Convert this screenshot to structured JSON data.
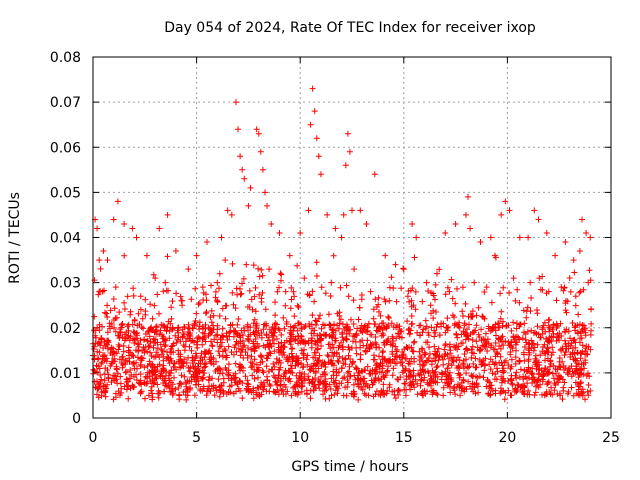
{
  "chart_data": {
    "type": "scatter",
    "title": "Day 054 of 2024, Rate Of TEC Index for receiver ixop",
    "xlabel": "GPS time / hours",
    "ylabel": "ROTI / TECUs",
    "xlim": [
      0,
      25
    ],
    "ylim": [
      0,
      0.08
    ],
    "x_ticks": [
      0,
      5,
      10,
      15,
      20,
      25
    ],
    "y_ticks": [
      0,
      0.01,
      0.02,
      0.03,
      0.04,
      0.05,
      0.06,
      0.07,
      0.08
    ],
    "x_tick_labels": [
      "0",
      "5",
      "10",
      "15",
      "20",
      "25"
    ],
    "y_tick_labels": [
      "0",
      "0.01",
      "0.02",
      "0.03",
      "0.04",
      "0.05",
      "0.06",
      "0.07",
      "0.08"
    ],
    "grid": true,
    "marker": "+",
    "color": "#ff0000",
    "series": [
      {
        "name": "ROTI",
        "points": [
          [
            0.1,
            0.044
          ],
          [
            0.2,
            0.042
          ],
          [
            0.3,
            0.035
          ],
          [
            0.5,
            0.037
          ],
          [
            0.7,
            0.035
          ],
          [
            1.0,
            0.044
          ],
          [
            1.2,
            0.048
          ],
          [
            1.5,
            0.043
          ],
          [
            1.9,
            0.042
          ],
          [
            2.1,
            0.04
          ],
          [
            2.6,
            0.036
          ],
          [
            3.2,
            0.042
          ],
          [
            3.6,
            0.045
          ],
          [
            4.0,
            0.037
          ],
          [
            4.6,
            0.033
          ],
          [
            5.0,
            0.036
          ],
          [
            5.5,
            0.039
          ],
          [
            6.2,
            0.04
          ],
          [
            6.5,
            0.046
          ],
          [
            6.7,
            0.045
          ],
          [
            6.9,
            0.07
          ],
          [
            7.0,
            0.064
          ],
          [
            7.1,
            0.058
          ],
          [
            7.2,
            0.055
          ],
          [
            7.3,
            0.053
          ],
          [
            7.5,
            0.047
          ],
          [
            7.6,
            0.051
          ],
          [
            7.9,
            0.064
          ],
          [
            8.0,
            0.063
          ],
          [
            8.1,
            0.059
          ],
          [
            8.2,
            0.055
          ],
          [
            8.3,
            0.05
          ],
          [
            8.4,
            0.047
          ],
          [
            8.6,
            0.043
          ],
          [
            9.0,
            0.041
          ],
          [
            9.5,
            0.036
          ],
          [
            10.0,
            0.041
          ],
          [
            10.4,
            0.046
          ],
          [
            10.5,
            0.065
          ],
          [
            10.6,
            0.073
          ],
          [
            10.7,
            0.068
          ],
          [
            10.8,
            0.062
          ],
          [
            10.9,
            0.058
          ],
          [
            11.0,
            0.054
          ],
          [
            11.3,
            0.045
          ],
          [
            11.7,
            0.042
          ],
          [
            12.0,
            0.04
          ],
          [
            12.1,
            0.045
          ],
          [
            12.2,
            0.056
          ],
          [
            12.3,
            0.063
          ],
          [
            12.4,
            0.059
          ],
          [
            12.5,
            0.046
          ],
          [
            12.9,
            0.046
          ],
          [
            13.2,
            0.043
          ],
          [
            13.6,
            0.054
          ],
          [
            14.1,
            0.036
          ],
          [
            14.6,
            0.034
          ],
          [
            15.0,
            0.033
          ],
          [
            15.4,
            0.043
          ],
          [
            15.6,
            0.04
          ],
          [
            16.1,
            0.03
          ],
          [
            16.6,
            0.032
          ],
          [
            17.0,
            0.041
          ],
          [
            17.5,
            0.043
          ],
          [
            18.0,
            0.045
          ],
          [
            18.1,
            0.049
          ],
          [
            18.2,
            0.042
          ],
          [
            18.7,
            0.039
          ],
          [
            19.2,
            0.04
          ],
          [
            19.4,
            0.036
          ],
          [
            19.7,
            0.045
          ],
          [
            19.9,
            0.048
          ],
          [
            20.1,
            0.046
          ],
          [
            20.6,
            0.04
          ],
          [
            21.0,
            0.04
          ],
          [
            21.3,
            0.046
          ],
          [
            21.5,
            0.044
          ],
          [
            21.9,
            0.041
          ],
          [
            22.3,
            0.036
          ],
          [
            22.8,
            0.039
          ],
          [
            23.2,
            0.035
          ],
          [
            23.5,
            0.037
          ],
          [
            23.6,
            0.044
          ],
          [
            23.8,
            0.041
          ],
          [
            24.0,
            0.04
          ],
          [
            0.3,
            0.028
          ],
          [
            1.1,
            0.029
          ],
          [
            2.3,
            0.027
          ],
          [
            3.0,
            0.031
          ],
          [
            4.3,
            0.026
          ],
          [
            5.3,
            0.029
          ],
          [
            6.0,
            0.03
          ],
          [
            7.4,
            0.034
          ],
          [
            8.5,
            0.033
          ],
          [
            9.3,
            0.028
          ],
          [
            10.2,
            0.031
          ],
          [
            11.5,
            0.03
          ],
          [
            12.6,
            0.033
          ],
          [
            13.4,
            0.028
          ],
          [
            14.3,
            0.026
          ],
          [
            15.2,
            0.027
          ],
          [
            16.3,
            0.025
          ],
          [
            17.2,
            0.028
          ],
          [
            18.4,
            0.03
          ],
          [
            19.0,
            0.029
          ],
          [
            20.3,
            0.031
          ],
          [
            21.1,
            0.03
          ],
          [
            22.0,
            0.028
          ],
          [
            22.6,
            0.029
          ],
          [
            23.3,
            0.027
          ],
          [
            23.9,
            0.03
          ],
          [
            0.2,
            0.02
          ],
          [
            0.8,
            0.021
          ],
          [
            1.6,
            0.019
          ],
          [
            2.4,
            0.022
          ],
          [
            3.4,
            0.018
          ],
          [
            4.1,
            0.02
          ],
          [
            4.9,
            0.021
          ],
          [
            5.7,
            0.019
          ],
          [
            6.4,
            0.022
          ],
          [
            7.7,
            0.024
          ],
          [
            8.8,
            0.021
          ],
          [
            9.7,
            0.02
          ],
          [
            10.9,
            0.022
          ],
          [
            11.9,
            0.021
          ],
          [
            13.0,
            0.019
          ],
          [
            13.8,
            0.02
          ],
          [
            14.8,
            0.018
          ],
          [
            15.9,
            0.019
          ],
          [
            16.8,
            0.021
          ],
          [
            17.7,
            0.02
          ],
          [
            18.9,
            0.022
          ],
          [
            19.6,
            0.021
          ],
          [
            20.8,
            0.019
          ],
          [
            21.7,
            0.02
          ],
          [
            22.4,
            0.018
          ],
          [
            23.4,
            0.019
          ],
          [
            0.4,
            0.012
          ],
          [
            1.3,
            0.013
          ],
          [
            2.0,
            0.011
          ],
          [
            2.8,
            0.012
          ],
          [
            3.7,
            0.01
          ],
          [
            4.4,
            0.013
          ],
          [
            5.2,
            0.012
          ],
          [
            6.1,
            0.011
          ],
          [
            6.8,
            0.014
          ],
          [
            7.8,
            0.013
          ],
          [
            8.7,
            0.012
          ],
          [
            9.6,
            0.011
          ],
          [
            10.3,
            0.013
          ],
          [
            11.2,
            0.012
          ],
          [
            12.0,
            0.011
          ],
          [
            12.9,
            0.013
          ],
          [
            13.7,
            0.012
          ],
          [
            14.5,
            0.011
          ],
          [
            15.3,
            0.012
          ],
          [
            16.2,
            0.01
          ],
          [
            17.1,
            0.011
          ],
          [
            18.0,
            0.013
          ],
          [
            18.8,
            0.012
          ],
          [
            19.5,
            0.011
          ],
          [
            20.4,
            0.012
          ],
          [
            21.2,
            0.011
          ],
          [
            22.1,
            0.012
          ],
          [
            22.9,
            0.01
          ],
          [
            23.7,
            0.011
          ],
          [
            0.6,
            0.006
          ],
          [
            1.7,
            0.007
          ],
          [
            2.7,
            0.005
          ],
          [
            3.8,
            0.006
          ],
          [
            4.5,
            0.004
          ],
          [
            5.6,
            0.006
          ],
          [
            6.6,
            0.007
          ],
          [
            7.1,
            0.006
          ],
          [
            8.1,
            0.007
          ],
          [
            9.1,
            0.006
          ],
          [
            10.1,
            0.007
          ],
          [
            11.1,
            0.006
          ],
          [
            12.1,
            0.005
          ],
          [
            12.8,
            0.004
          ],
          [
            13.3,
            0.005
          ],
          [
            14.2,
            0.006
          ],
          [
            15.1,
            0.005
          ],
          [
            16.0,
            0.006
          ],
          [
            16.9,
            0.005
          ],
          [
            17.8,
            0.006
          ],
          [
            18.3,
            0.007
          ],
          [
            19.3,
            0.006
          ],
          [
            20.2,
            0.005
          ],
          [
            21.0,
            0.006
          ],
          [
            21.8,
            0.005
          ],
          [
            22.7,
            0.006
          ],
          [
            23.5,
            0.005
          ],
          [
            24.0,
            0.006
          ]
        ]
      }
    ]
  }
}
